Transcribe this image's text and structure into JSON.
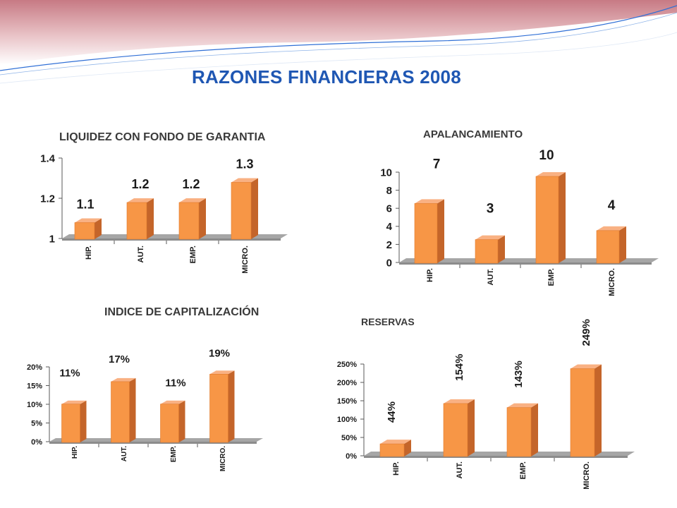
{
  "page": {
    "title": "RAZONES FINANCIERAS 2008"
  },
  "colors": {
    "bar_front": "#f79646",
    "bar_side": "#c4652a",
    "bar_top": "#f9b183",
    "floor": "#a6a6a6",
    "title_blue": "#1f57b3",
    "header_band": "#d98a92"
  },
  "chart_data": [
    {
      "id": "liquidez",
      "type": "bar",
      "title": "LIQUIDEZ CON FONDO DE GARANTIA",
      "categories": [
        "HIP.",
        "AUT.",
        "EMP.",
        "MICRO."
      ],
      "values": [
        1.1,
        1.2,
        1.2,
        1.3
      ],
      "data_labels": [
        "1.1",
        "1.2",
        "1.2",
        "1.3"
      ],
      "ylim": [
        1,
        1.4
      ],
      "yticks": [
        "1",
        "1.2",
        "1.4"
      ],
      "grid": false,
      "style": "3d"
    },
    {
      "id": "apalancamiento",
      "type": "bar",
      "title": "APALANCAMIENTO",
      "categories": [
        "HIP.",
        "AUT.",
        "EMP.",
        "MICRO."
      ],
      "values": [
        7,
        3,
        10,
        4
      ],
      "data_labels": [
        "7",
        "3",
        "10",
        "4"
      ],
      "ylim": [
        0,
        10
      ],
      "yticks": [
        "0",
        "2",
        "4",
        "6",
        "8",
        "10"
      ],
      "grid": false,
      "style": "3d"
    },
    {
      "id": "capitalizacion",
      "type": "bar",
      "title": "INDICE DE CAPITALIZACIÓN",
      "categories": [
        "HIP.",
        "AUT.",
        "EMP.",
        "MICRO."
      ],
      "values": [
        11,
        17,
        11,
        19
      ],
      "data_labels": [
        "11%",
        "17%",
        "11%",
        "19%"
      ],
      "ylim": [
        0,
        20
      ],
      "yticks": [
        "0%",
        "5%",
        "10%",
        "15%",
        "20%"
      ],
      "grid": false,
      "style": "3d"
    },
    {
      "id": "reservas",
      "type": "bar",
      "title": "RESERVAS",
      "categories": [
        "HIP.",
        "AUT.",
        "EMP.",
        "MICRO."
      ],
      "values": [
        44,
        154,
        143,
        249
      ],
      "data_labels": [
        "44%",
        "154%",
        "143%",
        "249%"
      ],
      "ylim": [
        0,
        250
      ],
      "yticks": [
        "0%",
        "50%",
        "100%",
        "150%",
        "200%",
        "250%"
      ],
      "grid": false,
      "style": "3d"
    }
  ]
}
